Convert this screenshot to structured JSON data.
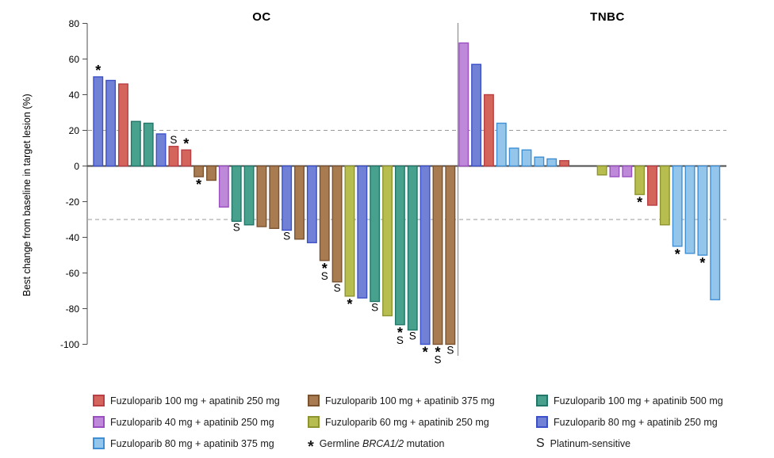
{
  "chart_data": {
    "type": "bar",
    "subtype": "waterfall",
    "ylabel": "Best change from baseline in target lesion (%)",
    "ylim": [
      -100,
      80
    ],
    "yticks": [
      80,
      60,
      40,
      20,
      0,
      -20,
      -40,
      -60,
      -80,
      -100
    ],
    "dashed_reference_lines": [
      20,
      -30
    ],
    "grid": "off",
    "groups": {
      "f100a250": {
        "label": "Fuzuloparib 100 mg + apatinib 250 mg",
        "fill": "#d4655c",
        "stroke": "#b93f44"
      },
      "f100a375": {
        "label": "Fuzuloparib 100 mg + apatinib 375 mg",
        "fill": "#a87b51",
        "stroke": "#7b5330"
      },
      "f100a500": {
        "label": "Fuzuloparib 100 mg + apatinib 500 mg",
        "fill": "#47a18d",
        "stroke": "#23766a"
      },
      "f40a250": {
        "label": "Fuzuloparib 40 mg + apatinib 250 mg",
        "fill": "#bd89d8",
        "stroke": "#9a4fc0"
      },
      "f60a250": {
        "label": "Fuzuloparib 60 mg + apatinib 250 mg",
        "fill": "#b7bd4e",
        "stroke": "#8e9431"
      },
      "f80a250": {
        "label": "Fuzuloparib 80 mg + apatinib 250 mg",
        "fill": "#7081d6",
        "stroke": "#3c50c8"
      },
      "f80a375": {
        "label": "Fuzuloparib 80 mg + apatinib 375 mg",
        "fill": "#94c6eb",
        "stroke": "#3f8fd4"
      }
    },
    "flag_meanings": {
      "*": "Germline BRCA1/2 mutation",
      "S": "Platinum-sensitive"
    },
    "panels": [
      {
        "title": "OC",
        "bars": [
          {
            "group": "f80a250",
            "value": 50,
            "flags": [
              "*"
            ]
          },
          {
            "group": "f80a250",
            "value": 48
          },
          {
            "group": "f100a250",
            "value": 46
          },
          {
            "group": "f100a500",
            "value": 25
          },
          {
            "group": "f100a500",
            "value": 24
          },
          {
            "group": "f80a250",
            "value": 18
          },
          {
            "group": "f100a250",
            "value": 11,
            "flags": [
              "S"
            ]
          },
          {
            "group": "f100a250",
            "value": 9,
            "flags": [
              "*"
            ]
          },
          {
            "group": "f100a375",
            "value": -6,
            "flags": [
              "*"
            ]
          },
          {
            "group": "f100a375",
            "value": -8
          },
          {
            "group": "f40a250",
            "value": -23
          },
          {
            "group": "f100a500",
            "value": -31,
            "flags": [
              "S"
            ]
          },
          {
            "group": "f100a500",
            "value": -33
          },
          {
            "group": "f100a375",
            "value": -34
          },
          {
            "group": "f100a375",
            "value": -35
          },
          {
            "group": "f80a250",
            "value": -36,
            "flags": [
              "S"
            ]
          },
          {
            "group": "f100a375",
            "value": -41
          },
          {
            "group": "f80a250",
            "value": -43
          },
          {
            "group": "f100a375",
            "value": -53,
            "flags": [
              "*",
              "S"
            ]
          },
          {
            "group": "f100a375",
            "value": -65,
            "flags": [
              "S"
            ]
          },
          {
            "group": "f60a250",
            "value": -73,
            "flags": [
              "*"
            ]
          },
          {
            "group": "f80a250",
            "value": -74
          },
          {
            "group": "f100a500",
            "value": -76,
            "flags": [
              "S"
            ]
          },
          {
            "group": "f60a250",
            "value": -84
          },
          {
            "group": "f100a500",
            "value": -89,
            "flags": [
              "*",
              "S"
            ]
          },
          {
            "group": "f100a500",
            "value": -92,
            "flags": [
              "S"
            ]
          },
          {
            "group": "f80a250",
            "value": -100,
            "flags": [
              "*"
            ]
          },
          {
            "group": "f100a375",
            "value": -100,
            "flags": [
              "*",
              "S"
            ]
          },
          {
            "group": "f100a375",
            "value": -100,
            "flags": [
              "S"
            ]
          }
        ]
      },
      {
        "title": "TNBC",
        "gap_after_index": 8,
        "bars": [
          {
            "group": "f40a250",
            "value": 69
          },
          {
            "group": "f80a250",
            "value": 57
          },
          {
            "group": "f100a250",
            "value": 40
          },
          {
            "group": "f80a375",
            "value": 24
          },
          {
            "group": "f80a375",
            "value": 10
          },
          {
            "group": "f80a375",
            "value": 9
          },
          {
            "group": "f80a375",
            "value": 5
          },
          {
            "group": "f80a375",
            "value": 4
          },
          {
            "group": "f100a250",
            "value": 3
          },
          {
            "group": "f60a250",
            "value": -5
          },
          {
            "group": "f40a250",
            "value": -6
          },
          {
            "group": "f40a250",
            "value": -6
          },
          {
            "group": "f60a250",
            "value": -16,
            "flags": [
              "*"
            ]
          },
          {
            "group": "f100a250",
            "value": -22
          },
          {
            "group": "f60a250",
            "value": -33
          },
          {
            "group": "f80a375",
            "value": -45,
            "flags": [
              "*"
            ]
          },
          {
            "group": "f80a375",
            "value": -49
          },
          {
            "group": "f80a375",
            "value": -50,
            "flags": [
              "*"
            ]
          },
          {
            "group": "f80a375",
            "value": -75
          }
        ]
      }
    ]
  },
  "legend": {
    "columns": [
      {
        "items": [
          {
            "swatch": "f100a250",
            "label": "Fuzuloparib 100 mg + apatinib 250 mg"
          },
          {
            "swatch": "f40a250",
            "label": "Fuzuloparib 40 mg + apatinib 250 mg"
          },
          {
            "swatch": "f80a375",
            "label": "Fuzuloparib 80 mg + apatinib 375 mg"
          }
        ]
      },
      {
        "items": [
          {
            "swatch": "f100a375",
            "label": "Fuzuloparib 100 mg + apatinib 375 mg"
          },
          {
            "swatch": "f60a250",
            "label": "Fuzuloparib 60 mg + apatinib 250 mg"
          },
          {
            "symbol": "*",
            "label_prefix": "Germline ",
            "label_italic": "BRCA1/2",
            "label_suffix": " mutation"
          }
        ]
      },
      {
        "items": [
          {
            "swatch": "f100a500",
            "label": "Fuzuloparib 100 mg + apatinib 500 mg"
          },
          {
            "swatch": "f80a250",
            "label": "Fuzuloparib 80 mg + apatinib 250 mg"
          },
          {
            "symbol": "S",
            "label": "Platinum-sensitive"
          }
        ]
      }
    ]
  }
}
